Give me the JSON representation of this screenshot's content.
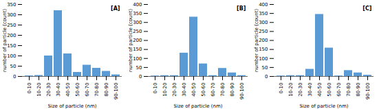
{
  "chart_data": [
    {
      "type": "bar",
      "annotation": "[A]",
      "xlabel": "Size of particle (nm)",
      "ylabel": "number of particle (count)",
      "categories": [
        "0-10",
        "10-20",
        "20-30",
        "30-40",
        "40-50",
        "50-60",
        "60-70",
        "70-80",
        "80-90",
        "90-100"
      ],
      "values": [
        3,
        5,
        100,
        320,
        110,
        20,
        55,
        40,
        25,
        8
      ],
      "color": "#5B9BD5",
      "ylim": [
        0,
        350
      ],
      "yticks": [
        0,
        50,
        100,
        150,
        200,
        250,
        300,
        350
      ]
    },
    {
      "type": "bar",
      "annotation": "[B]",
      "xlabel": "Size of particle (nm)",
      "ylabel": "number of particle (count)",
      "categories": [
        "0-10",
        "10-20",
        "20-30",
        "30-40",
        "40-50",
        "50-60",
        "60-70",
        "70-80",
        "80-90",
        "90-100"
      ],
      "values": [
        3,
        5,
        5,
        130,
        330,
        70,
        5,
        45,
        20,
        5
      ],
      "color": "#5B9BD5",
      "ylim": [
        0,
        400
      ],
      "yticks": [
        0,
        50,
        100,
        150,
        200,
        250,
        300,
        350,
        400
      ]
    },
    {
      "type": "bar",
      "annotation": "[C]",
      "xlabel": "Size of particle (nm)",
      "ylabel": "number of particle (count)",
      "categories": [
        "0-10",
        "10-20",
        "20-30",
        "30-40",
        "40-50",
        "50-60",
        "60-70",
        "70-80",
        "80-90",
        "90-100"
      ],
      "values": [
        3,
        5,
        5,
        40,
        345,
        158,
        3,
        33,
        20,
        7
      ],
      "color": "#5B9BD5",
      "ylim": [
        0,
        400
      ],
      "yticks": [
        0,
        50,
        100,
        150,
        200,
        250,
        300,
        350,
        400
      ]
    }
  ]
}
